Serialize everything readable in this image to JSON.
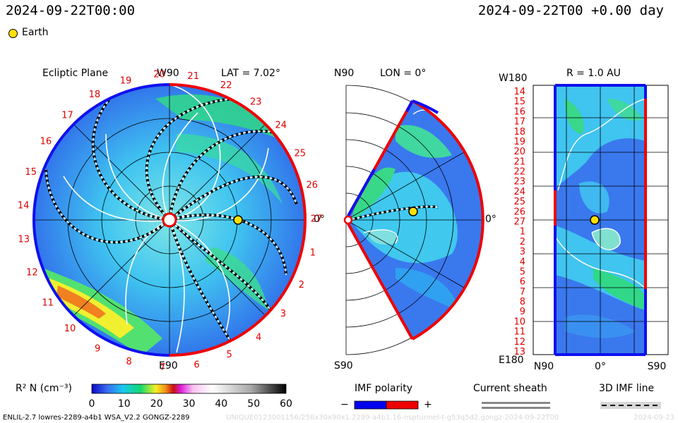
{
  "header": {
    "left_time": "2024-09-22T00:00",
    "right_time": "2024-09-22T00 +0.00 day",
    "earth_label": "Earth"
  },
  "ecliptic": {
    "title": "Ecliptic Plane",
    "top_label": "W90",
    "bottom_label": "E90",
    "right_label": "0°",
    "lat_label": "LAT = 7.02°",
    "sectors": [
      "1",
      "2",
      "3",
      "4",
      "5",
      "6",
      "7",
      "8",
      "9",
      "10",
      "11",
      "12",
      "13",
      "14",
      "15",
      "16",
      "17",
      "18",
      "19",
      "20",
      "21",
      "22",
      "23",
      "24",
      "25",
      "26",
      "27"
    ]
  },
  "meridional": {
    "top_label": "N90",
    "bottom_label": "S90",
    "right_label": "0°",
    "lon_label": "LON = 0°"
  },
  "radial": {
    "title": "R = 1.0 AU",
    "top_left": "W180",
    "bottom_left": "E180",
    "x_labels": [
      "N90",
      "0°",
      "S90"
    ],
    "y_labels": [
      "14",
      "15",
      "16",
      "17",
      "18",
      "19",
      "20",
      "21",
      "22",
      "23",
      "24",
      "25",
      "26",
      "27",
      "1",
      "2",
      "3",
      "4",
      "5",
      "6",
      "7",
      "8",
      "9",
      "10",
      "11",
      "12",
      "13"
    ]
  },
  "colorbar": {
    "label": "R² N (cm⁻³)",
    "ticks": [
      "0",
      "10",
      "20",
      "30",
      "40",
      "50",
      "60"
    ],
    "min": 0,
    "max": 60
  },
  "legend": {
    "imf_title": "IMF polarity",
    "minus": "−",
    "plus": "+",
    "sheath_title": "Current sheath",
    "imf_line_title": "3D IMF line",
    "imf_neg_color": "#0000ee",
    "imf_pos_color": "#ee0000"
  },
  "footer": {
    "model": "ENLIL-2.7 lowres-2289-a4b1 WSA_V2.2 GONGZ-2289",
    "run_id": "UNIQUE0123001156/256x30x90x1.2289-a4b1.16-nsptunnel-t-g53q5d2.gongz-2024-09-22T00",
    "corner": "2024-09-23"
  }
}
